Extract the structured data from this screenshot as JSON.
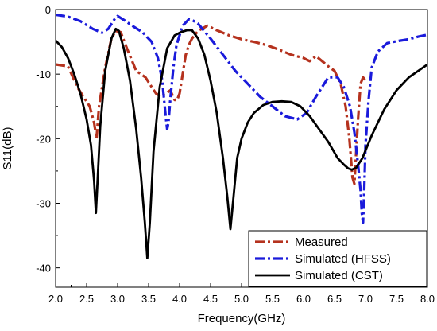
{
  "chart_data": {
    "type": "line",
    "title": "",
    "xlabel": "Frequency(GHz)",
    "ylabel": "S11(dB)",
    "xlim": [
      2.0,
      8.0
    ],
    "ylim": [
      -43,
      0
    ],
    "x_ticks": [
      "2.0",
      "2.5",
      "3.0",
      "3.5",
      "4.0",
      "4.5",
      "5.0",
      "5.5",
      "6.0",
      "6.5",
      "7.0",
      "7.5",
      "8.0"
    ],
    "y_ticks": [
      "0",
      "-10",
      "-20",
      "-30",
      "-40"
    ],
    "grid": false,
    "legend_position": "bottom-right",
    "series": [
      {
        "name": "Measured",
        "color": "#b5321e",
        "dash": "dash-dot",
        "x": [
          2.0,
          2.2,
          2.35,
          2.45,
          2.55,
          2.62,
          2.66,
          2.7,
          2.8,
          2.9,
          2.97,
          3.05,
          3.15,
          3.3,
          3.45,
          3.55,
          3.62,
          3.7,
          3.78,
          3.85,
          3.92,
          3.96,
          4.0,
          4.05,
          4.1,
          4.15,
          4.2,
          4.3,
          4.45,
          4.6,
          4.8,
          5.0,
          5.2,
          5.4,
          5.6,
          5.8,
          6.0,
          6.1,
          6.2,
          6.3,
          6.4,
          6.5,
          6.6,
          6.68,
          6.74,
          6.79,
          6.82,
          6.85,
          6.88,
          6.92,
          6.96,
          7.0
        ],
        "y": [
          -8.5,
          -8.8,
          -12.0,
          -13.5,
          -15.0,
          -17.5,
          -20.0,
          -15.0,
          -9.0,
          -4.5,
          -3.3,
          -3.5,
          -6.0,
          -9.5,
          -10.5,
          -12.0,
          -13.0,
          -13.5,
          -13.0,
          -12.5,
          -14.0,
          -14.0,
          -13.0,
          -10.0,
          -7.0,
          -5.5,
          -4.5,
          -3.3,
          -2.5,
          -3.2,
          -4.0,
          -4.6,
          -5.0,
          -5.5,
          -6.2,
          -7.0,
          -7.5,
          -8.0,
          -7.2,
          -8.0,
          -8.8,
          -9.5,
          -11.5,
          -15.0,
          -20.0,
          -26.0,
          -27.0,
          -22.0,
          -17.0,
          -11.5,
          -10.5,
          -11.0
        ]
      },
      {
        "name": "Simulated (HFSS)",
        "color": "#1a1adb",
        "dash": "dash-dot",
        "x": [
          2.0,
          2.2,
          2.4,
          2.6,
          2.75,
          2.85,
          2.95,
          3.0,
          3.1,
          3.25,
          3.4,
          3.55,
          3.65,
          3.72,
          3.77,
          3.8,
          3.82,
          3.85,
          3.9,
          3.95,
          4.05,
          4.15,
          4.2,
          4.3,
          4.5,
          4.7,
          4.9,
          5.1,
          5.3,
          5.5,
          5.7,
          5.9,
          6.05,
          6.2,
          6.4,
          6.55,
          6.65,
          6.75,
          6.82,
          6.88,
          6.92,
          6.94,
          6.96,
          6.98,
          7.0,
          7.05,
          7.1,
          7.2,
          7.35,
          7.5,
          7.7,
          7.85,
          8.0
        ],
        "y": [
          -0.8,
          -1.1,
          -1.8,
          -3.0,
          -3.6,
          -3.0,
          -1.5,
          -1.0,
          -1.6,
          -2.6,
          -3.5,
          -5.0,
          -7.5,
          -11.0,
          -16.0,
          -18.5,
          -17.5,
          -14.0,
          -9.0,
          -5.5,
          -2.5,
          -1.5,
          -1.6,
          -2.2,
          -4.5,
          -7.0,
          -9.5,
          -11.5,
          -13.5,
          -15.0,
          -16.5,
          -17.0,
          -16.0,
          -13.5,
          -10.5,
          -10.5,
          -12.0,
          -15.0,
          -19.0,
          -24.0,
          -28.0,
          -31.5,
          -33.0,
          -28.0,
          -21.0,
          -14.0,
          -9.0,
          -6.5,
          -5.2,
          -4.9,
          -4.6,
          -4.2,
          -3.9
        ]
      },
      {
        "name": "Simulated (CST)",
        "color": "#000000",
        "dash": "solid",
        "x": [
          2.0,
          2.1,
          2.2,
          2.3,
          2.4,
          2.5,
          2.57,
          2.62,
          2.65,
          2.68,
          2.72,
          2.8,
          2.9,
          2.97,
          3.02,
          3.1,
          3.2,
          3.3,
          3.38,
          3.44,
          3.48,
          3.52,
          3.58,
          3.68,
          3.8,
          3.92,
          4.02,
          4.12,
          4.2,
          4.3,
          4.4,
          4.5,
          4.6,
          4.7,
          4.77,
          4.82,
          4.87,
          4.93,
          5.0,
          5.1,
          5.2,
          5.35,
          5.5,
          5.65,
          5.8,
          5.95,
          6.1,
          6.25,
          6.4,
          6.55,
          6.65,
          6.72,
          6.78,
          6.85,
          6.95,
          7.1,
          7.3,
          7.5,
          7.7,
          7.85,
          8.0
        ],
        "y": [
          -4.8,
          -5.8,
          -7.5,
          -10.0,
          -13.0,
          -17.0,
          -21.0,
          -26.5,
          -31.5,
          -26.0,
          -18.0,
          -9.5,
          -4.5,
          -3.0,
          -3.3,
          -6.0,
          -11.0,
          -18.5,
          -26.0,
          -33.0,
          -38.5,
          -33.0,
          -22.0,
          -12.0,
          -6.0,
          -4.0,
          -3.5,
          -3.2,
          -3.2,
          -4.5,
          -7.0,
          -11.0,
          -16.0,
          -23.0,
          -29.0,
          -34.0,
          -29.0,
          -23.0,
          -20.0,
          -17.5,
          -16.0,
          -14.8,
          -14.3,
          -14.2,
          -14.3,
          -15.0,
          -16.5,
          -18.5,
          -20.5,
          -23.0,
          -24.0,
          -24.6,
          -24.8,
          -24.5,
          -23.0,
          -19.5,
          -15.5,
          -12.5,
          -10.5,
          -9.5,
          -8.5
        ]
      }
    ]
  }
}
